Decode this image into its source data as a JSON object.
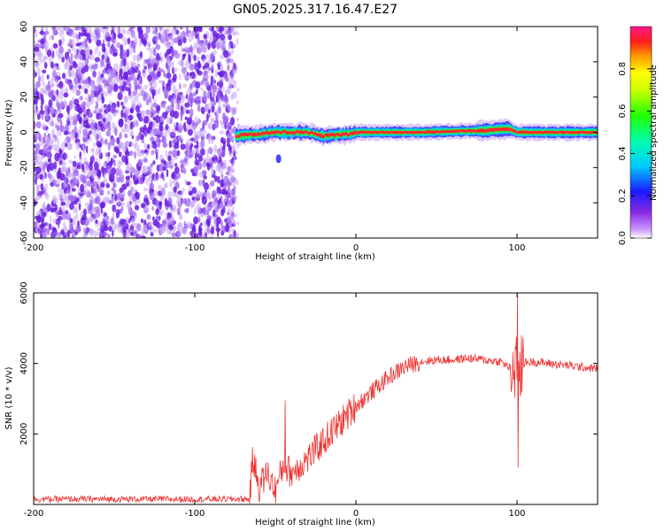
{
  "title": "GN05.2025.317.16.47.E27",
  "colors": {
    "snr_line": "#ee3333",
    "noise_purple": "#6a1fe0",
    "noise_light": "#c9a8f5"
  },
  "chart_data": [
    {
      "type": "heatmap",
      "name": "spectrogram",
      "xlabel": "Height of straight line (km)",
      "ylabel": "Frequency (Hz)",
      "xlim": [
        -200,
        150
      ],
      "ylim": [
        -60,
        60
      ],
      "xticks": [
        "-200",
        "-100",
        "0",
        "100"
      ],
      "yticks": [
        "60",
        "40",
        "20",
        "0",
        "-20",
        "-40",
        "-60"
      ],
      "noise_region_km": [
        -200,
        -75
      ],
      "signal_start_km": -75,
      "signal_trace": [
        {
          "x": -75,
          "y": -2
        },
        {
          "x": -60,
          "y": -1
        },
        {
          "x": -50,
          "y": 0
        },
        {
          "x": -30,
          "y": 0
        },
        {
          "x": -20,
          "y": -2
        },
        {
          "x": -5,
          "y": -1
        },
        {
          "x": 0,
          "y": 0
        },
        {
          "x": 40,
          "y": 0
        },
        {
          "x": 80,
          "y": 1
        },
        {
          "x": 95,
          "y": 2
        },
        {
          "x": 100,
          "y": 0
        },
        {
          "x": 150,
          "y": 0
        }
      ],
      "colorbar": {
        "label": "Normalized spectral amplitude",
        "range": [
          0,
          1
        ],
        "ticks": [
          "0.0",
          "0.2",
          "0.4",
          "0.6",
          "0.8"
        ]
      }
    },
    {
      "type": "line",
      "name": "snr",
      "xlabel": "Height of straight line (km)",
      "ylabel": "SNR (10 * v/v)",
      "xlim": [
        -200,
        150
      ],
      "ylim": [
        0,
        6000
      ],
      "xticks": [
        "-200",
        "-100",
        "0",
        "100"
      ],
      "yticks": [
        "6000",
        "4000",
        "2000"
      ],
      "series": [
        {
          "name": "SNR",
          "x": [
            -200,
            -150,
            -100,
            -66,
            -64,
            -60,
            -55,
            -50,
            -45,
            -40,
            -30,
            -20,
            -10,
            0,
            10,
            20,
            30,
            40,
            50,
            60,
            70,
            80,
            90,
            98,
            100,
            102,
            110,
            120,
            130,
            140,
            150
          ],
          "y": [
            150,
            150,
            150,
            150,
            1300,
            500,
            900,
            400,
            1100,
            900,
            1300,
            1800,
            2300,
            2800,
            3200,
            3600,
            3900,
            4050,
            4100,
            4100,
            4150,
            4100,
            4050,
            3800,
            4300,
            4000,
            4050,
            4000,
            3950,
            3900,
            3850
          ]
        }
      ],
      "annotations": [
        {
          "x": 100,
          "y": 6000,
          "note": "spike"
        },
        {
          "x": 100,
          "y": 1050,
          "note": "dip"
        },
        {
          "x": -44,
          "y": 2950,
          "note": "spike"
        }
      ]
    }
  ]
}
